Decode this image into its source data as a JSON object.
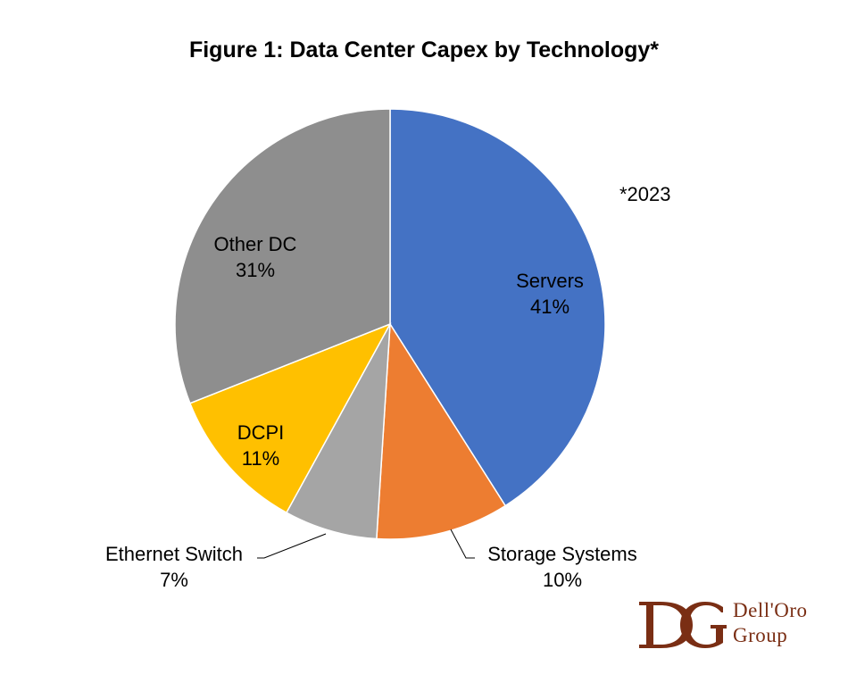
{
  "chart_data": {
    "type": "pie",
    "title": "Figure 1: Data Center Capex by Technology*",
    "note": "*2023",
    "slices": [
      {
        "label": "Servers",
        "value": 41,
        "value_label": "41%",
        "color": "#4472C4"
      },
      {
        "label": "Storage Systems",
        "value": 10,
        "value_label": "10%",
        "color": "#ED7D31"
      },
      {
        "label": "Ethernet Switch",
        "value": 7,
        "value_label": "7%",
        "color": "#A5A5A5"
      },
      {
        "label": "DCPI",
        "value": 11,
        "value_label": "11%",
        "color": "#FFC000"
      },
      {
        "label": "Other DC",
        "value": 31,
        "value_label": "31%",
        "color": "#8E8E8E"
      }
    ]
  },
  "logo": {
    "monogram": "DG",
    "line1": "Dell'Oro",
    "line2": "Group",
    "color": "#7A2E14"
  }
}
